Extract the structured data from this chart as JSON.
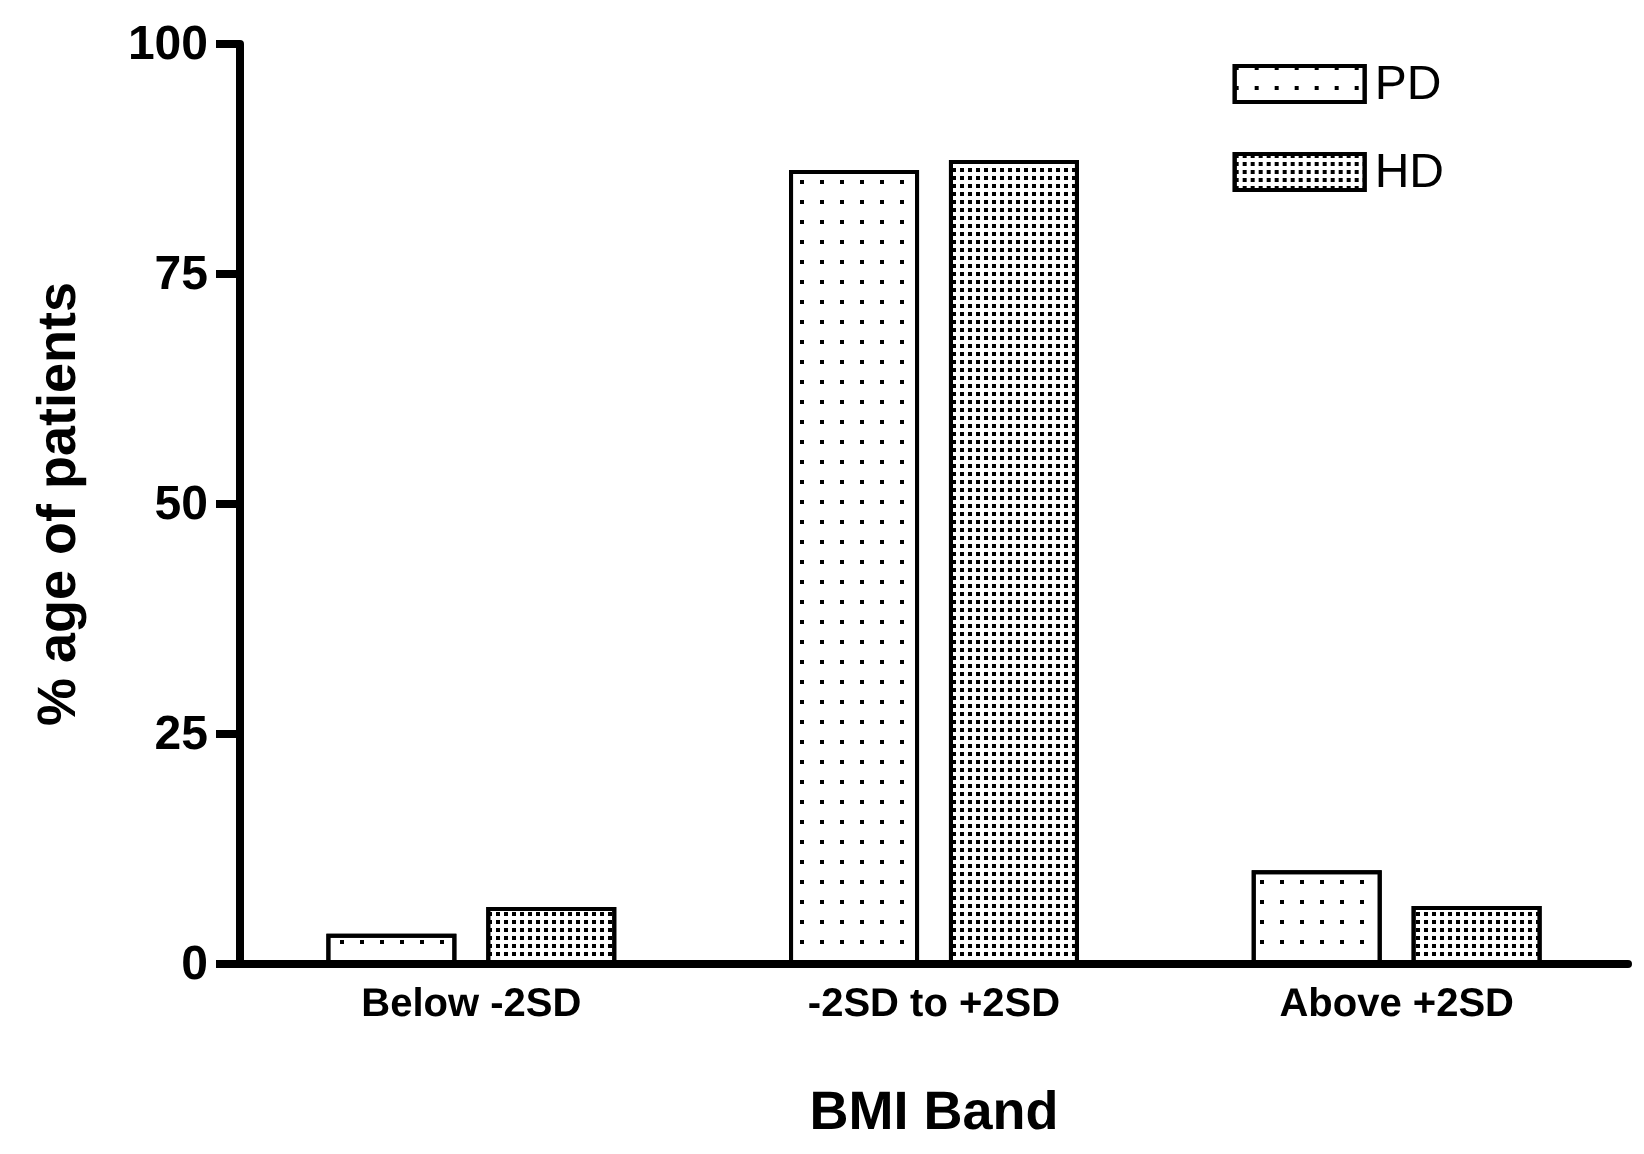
{
  "chart_data": {
    "type": "bar",
    "xlabel": "BMI Band",
    "ylabel": "% age of patients",
    "categories": [
      "Below -2SD",
      "-2SD to +2SD",
      "Above +2SD"
    ],
    "series": [
      {
        "name": "PD",
        "color": "#ffffff",
        "values": [
          3.3,
          86.3,
          10.2
        ]
      },
      {
        "name": "HD",
        "color": "#ffffff",
        "values": [
          6.2,
          87.4,
          6.3
        ]
      }
    ],
    "ylim": [
      0,
      100
    ],
    "yticks": [
      0,
      25,
      50,
      75,
      100
    ],
    "grid": false,
    "legend": "top right"
  }
}
